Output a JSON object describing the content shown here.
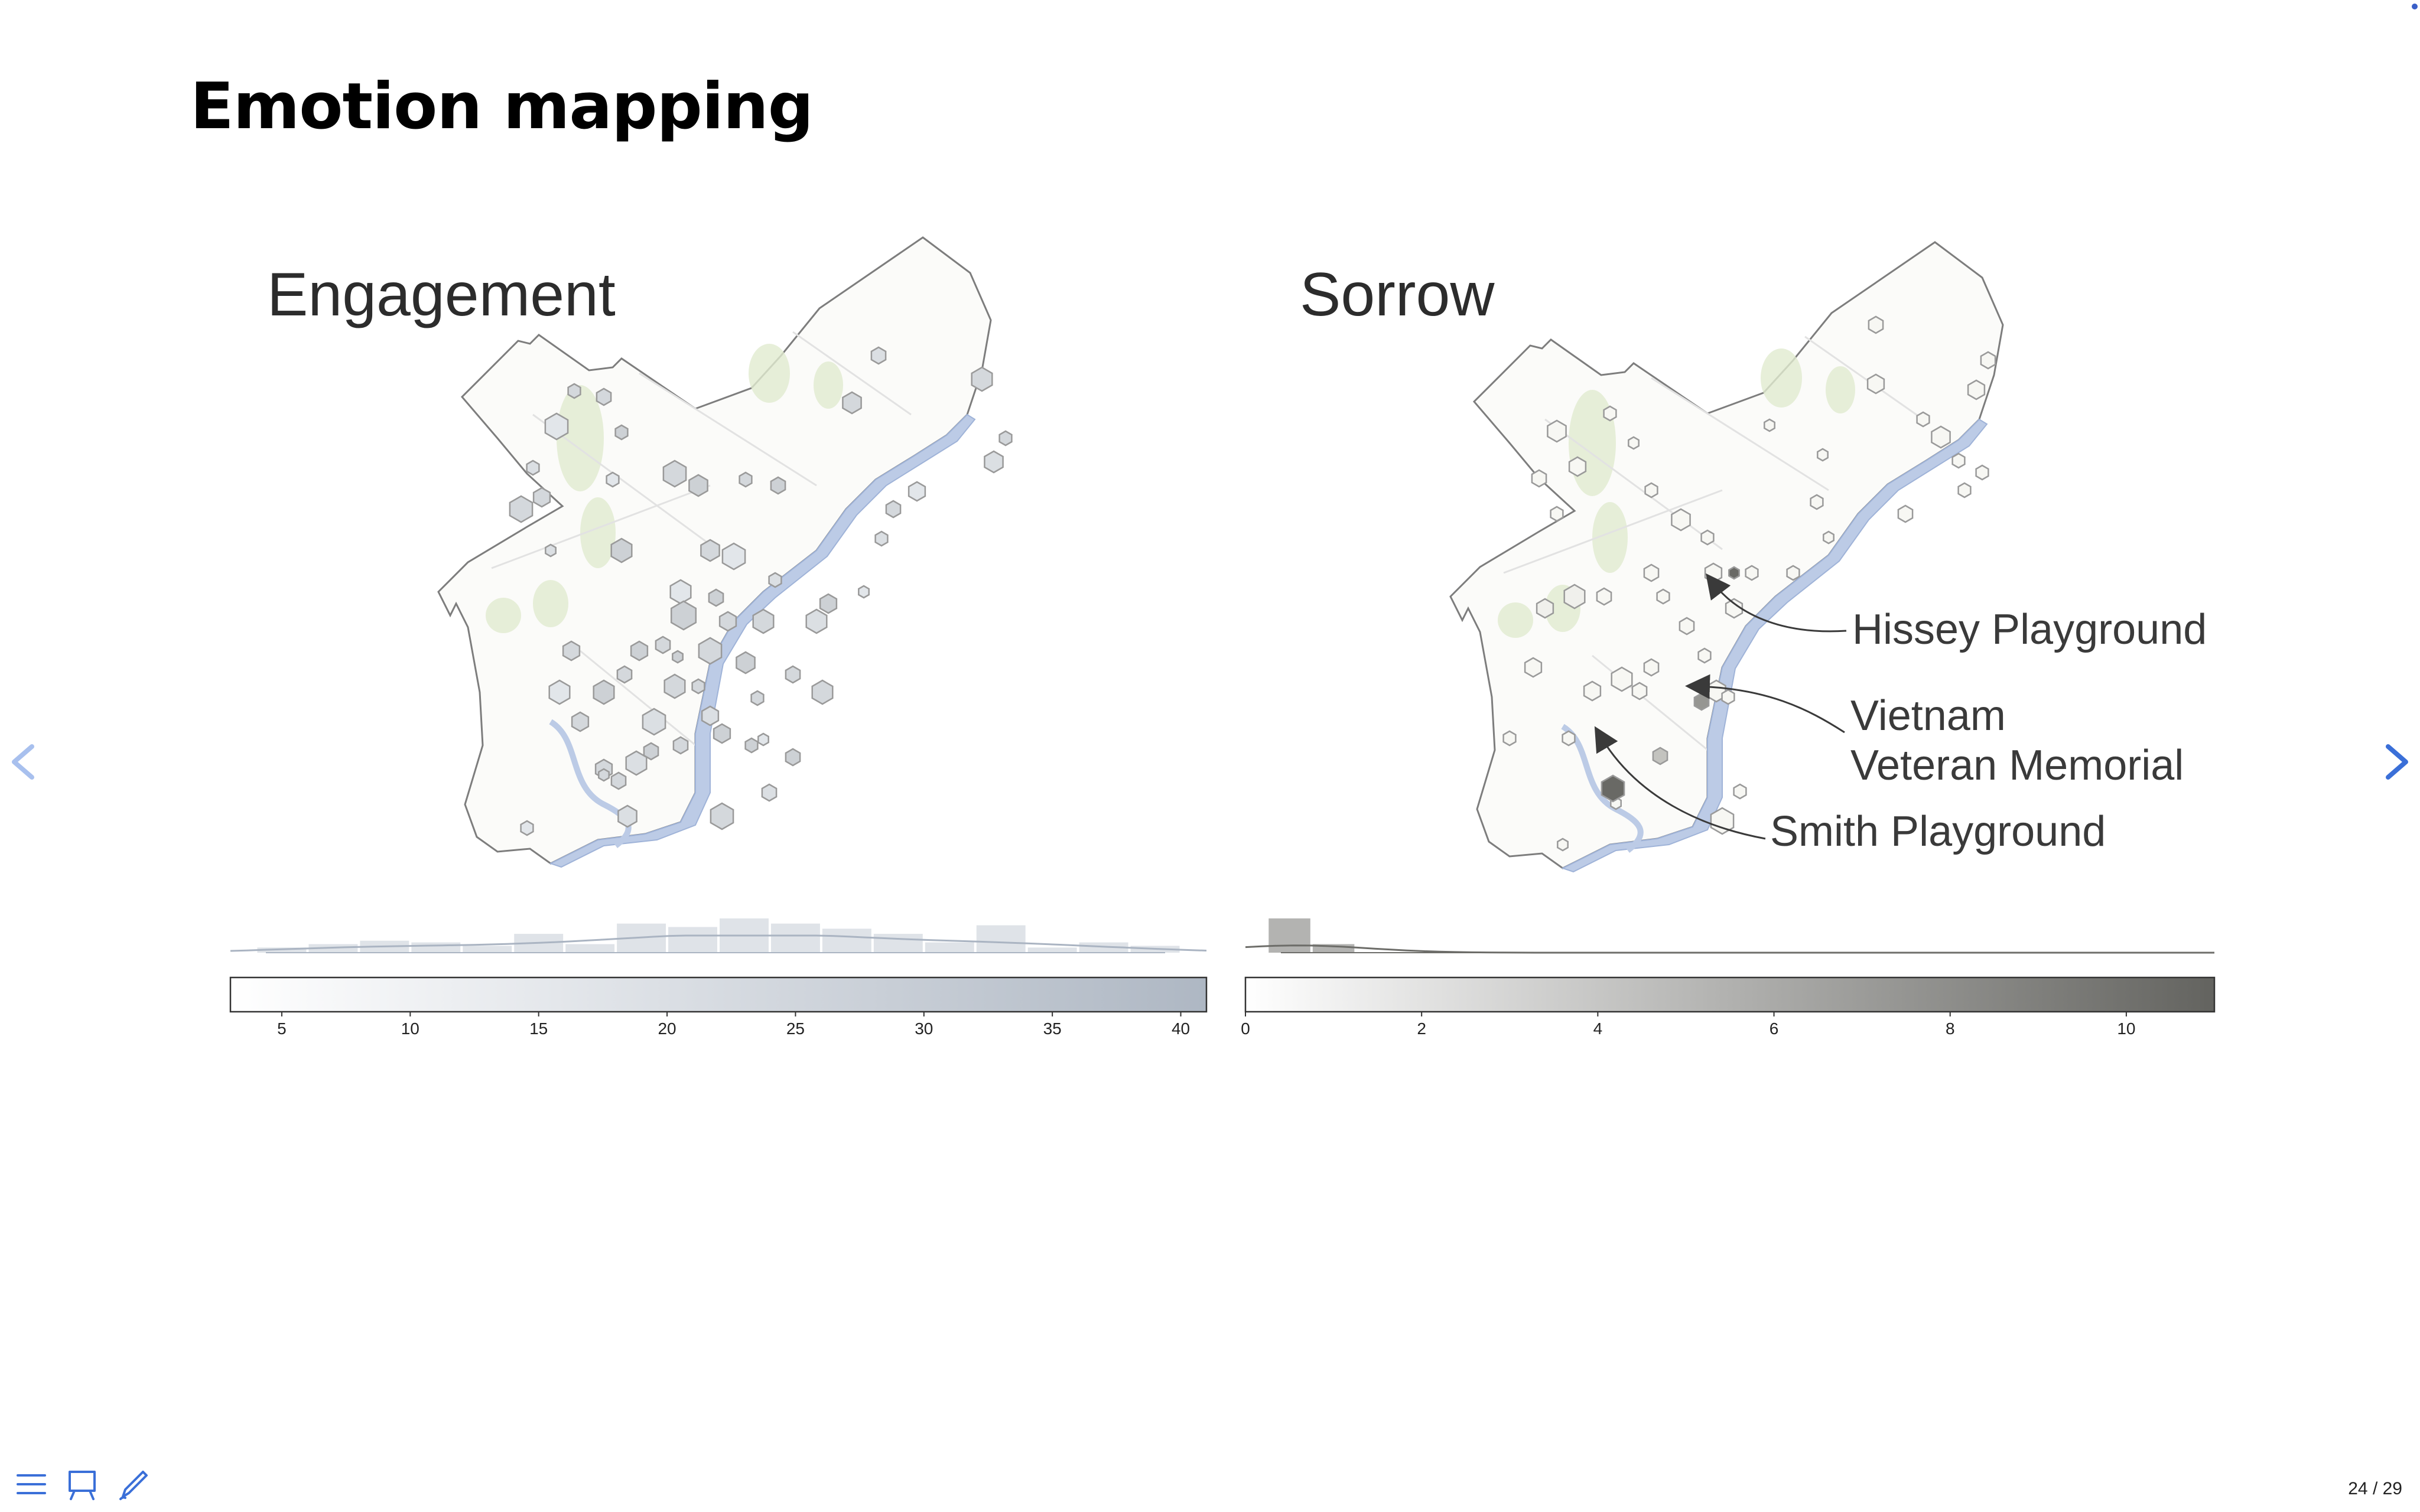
{
  "slide": {
    "title": "Emotion mapping",
    "page_counter": "24 / 29"
  },
  "colors": {
    "engagement_fill": "#c3cad3",
    "sorrow_fill": "#6d6d69",
    "river": "#b9c9e6",
    "park": "#dde8c9",
    "accent": "#3a6fd8"
  },
  "icons": {
    "prev": "chevron-left-icon",
    "next": "chevron-right-icon",
    "menu": "menu-icon",
    "overview": "presentation-icon",
    "annotate": "pen-icon"
  },
  "chart_data": [
    {
      "type": "heatmap",
      "title": "Engagement",
      "colorbar": {
        "range": [
          3,
          41
        ],
        "ticks": [
          5,
          10,
          15,
          20,
          25,
          30,
          35,
          40
        ],
        "color_low": "#ffffff",
        "color_high": "#aeb7c3"
      },
      "histogram": {
        "x": [
          5,
          7,
          9,
          11,
          13,
          15,
          17,
          19,
          21,
          23,
          25,
          27,
          29,
          31,
          33,
          35,
          37,
          39
        ],
        "heights": [
          0.15,
          0.25,
          0.35,
          0.3,
          0.2,
          0.55,
          0.25,
          0.85,
          0.75,
          1.0,
          0.85,
          0.7,
          0.55,
          0.3,
          0.8,
          0.15,
          0.3,
          0.2
        ]
      }
    },
    {
      "type": "heatmap",
      "title": "Sorrow",
      "colorbar": {
        "range": [
          0,
          11
        ],
        "ticks": [
          0,
          2,
          4,
          6,
          8,
          10
        ],
        "color_low": "#ffffff",
        "color_high": "#63635f"
      },
      "histogram": {
        "x": [
          0.5,
          1.0
        ],
        "heights": [
          1.0,
          0.25
        ]
      },
      "annotations": [
        {
          "label": "Hissey Playground"
        },
        {
          "label_lines": [
            "Vietnam",
            "Veteran Memorial"
          ]
        },
        {
          "label": "Smith Playground"
        }
      ]
    }
  ]
}
